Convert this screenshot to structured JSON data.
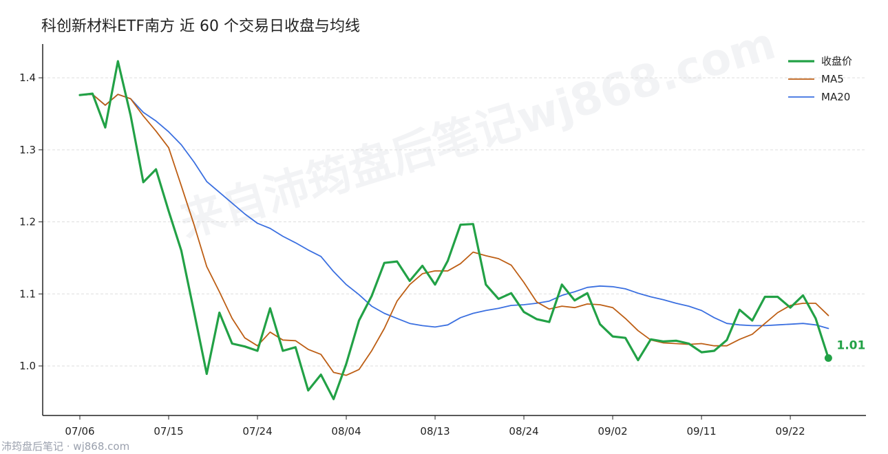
{
  "title": "科创新材料ETF南方 近 60 个交易日收盘与均线",
  "watermark": "来自沛筠盘后笔记wj868.com",
  "footer": "沛筠盘后笔记 · wj868.com",
  "colors": {
    "close": "#22a146",
    "ma5": "#bd5e14",
    "ma20": "#3a6fe0",
    "grid": "#dddddd",
    "axis": "#222222"
  },
  "chart_data": {
    "type": "line",
    "title": "科创新材料ETF南方 近 60 个交易日收盘与均线",
    "xlabel": "",
    "ylabel": "",
    "ylim": [
      0.93,
      1.47
    ],
    "yticks": [
      "1.0",
      "1.1",
      "1.2",
      "1.3",
      "1.4"
    ],
    "yticks_values": [
      1.0,
      1.1,
      1.2,
      1.3,
      1.4
    ],
    "x_tick_labels": [
      "07/06",
      "07/15",
      "07/24",
      "08/04",
      "08/13",
      "08/24",
      "09/02",
      "09/11",
      "09/22"
    ],
    "x_tick_index": [
      0,
      7,
      14,
      21,
      28,
      35,
      42,
      49,
      56
    ],
    "grid": true,
    "legend_position": "top-right",
    "end_label": "1.01",
    "series": [
      {
        "name": "收盘价",
        "values": [
          1.376,
          1.378,
          1.331,
          1.423,
          1.348,
          1.255,
          1.273,
          1.215,
          1.16,
          1.075,
          0.989,
          1.074,
          1.031,
          1.027,
          1.021,
          1.08,
          1.021,
          1.026,
          0.966,
          0.988,
          0.954,
          1.003,
          1.063,
          1.097,
          1.143,
          1.145,
          1.118,
          1.139,
          1.113,
          1.146,
          1.196,
          1.197,
          1.113,
          1.093,
          1.101,
          1.075,
          1.065,
          1.061,
          1.113,
          1.091,
          1.101,
          1.058,
          1.041,
          1.039,
          1.008,
          1.037,
          1.034,
          1.035,
          1.031,
          1.019,
          1.021,
          1.036,
          1.078,
          1.063,
          1.096,
          1.096,
          1.081,
          1.098,
          1.066,
          1.011
        ]
      },
      {
        "name": "MA5",
        "values": [
          1.376,
          1.377,
          1.362,
          1.377,
          1.371,
          1.347,
          1.326,
          1.303,
          1.25,
          1.196,
          1.138,
          1.103,
          1.066,
          1.039,
          1.028,
          1.047,
          1.036,
          1.035,
          1.023,
          1.016,
          0.991,
          0.987,
          0.995,
          1.021,
          1.052,
          1.09,
          1.113,
          1.128,
          1.132,
          1.132,
          1.142,
          1.158,
          1.153,
          1.149,
          1.14,
          1.116,
          1.089,
          1.079,
          1.083,
          1.081,
          1.086,
          1.085,
          1.081,
          1.066,
          1.049,
          1.036,
          1.032,
          1.031,
          1.03,
          1.031,
          1.028,
          1.028,
          1.037,
          1.044,
          1.059,
          1.074,
          1.084,
          1.087,
          1.087,
          1.07
        ]
      },
      {
        "name": "MA20",
        "values": [
          1.376,
          1.377,
          1.362,
          1.377,
          1.371,
          1.352,
          1.34,
          1.325,
          1.307,
          1.283,
          1.256,
          1.241,
          1.226,
          1.211,
          1.198,
          1.191,
          1.18,
          1.171,
          1.161,
          1.152,
          1.131,
          1.113,
          1.099,
          1.083,
          1.073,
          1.066,
          1.059,
          1.056,
          1.054,
          1.057,
          1.067,
          1.073,
          1.077,
          1.08,
          1.084,
          1.085,
          1.087,
          1.09,
          1.098,
          1.103,
          1.109,
          1.111,
          1.11,
          1.107,
          1.101,
          1.096,
          1.092,
          1.087,
          1.083,
          1.077,
          1.067,
          1.059,
          1.057,
          1.056,
          1.056,
          1.057,
          1.058,
          1.059,
          1.057,
          1.052
        ]
      }
    ]
  }
}
